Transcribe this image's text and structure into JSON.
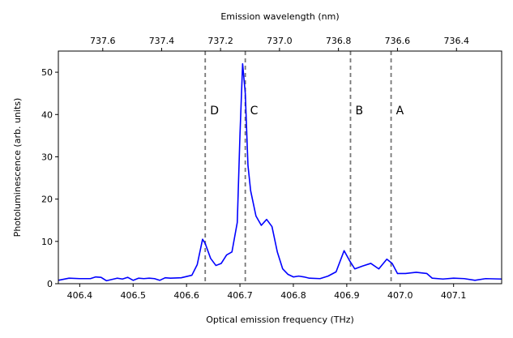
{
  "chart_data": {
    "type": "line",
    "xlabel": "Optical emission frequency (THz)",
    "ylabel": "Photoluminescence (arb. units)",
    "top_xlabel": "Emission wavelength (nm)",
    "xlim": [
      406.36,
      407.19
    ],
    "ylim": [
      0,
      55
    ],
    "x_ticks": [
      406.4,
      406.5,
      406.6,
      406.7,
      406.8,
      406.9,
      407.0,
      407.1
    ],
    "x_tick_labels": [
      "406.4",
      "406.5",
      "406.6",
      "406.7",
      "406.8",
      "406.9",
      "407.0",
      "407.1"
    ],
    "y_ticks": [
      0,
      10,
      20,
      30,
      40,
      50
    ],
    "y_tick_labels": [
      "0",
      "10",
      "20",
      "30",
      "40",
      "50"
    ],
    "top_ticks": [
      737.6,
      737.4,
      737.2,
      737.0,
      736.8,
      736.6,
      736.4
    ],
    "top_tick_labels": [
      "737.6",
      "737.4",
      "737.2",
      "737.0",
      "736.8",
      "736.6",
      "736.4"
    ],
    "series": [
      {
        "name": "Photoluminescence",
        "color": "#0000ff",
        "x": [
          406.36,
          406.38,
          406.4,
          406.42,
          406.43,
          406.44,
          406.45,
          406.47,
          406.48,
          406.49,
          406.5,
          406.51,
          406.52,
          406.53,
          406.54,
          406.55,
          406.56,
          406.57,
          406.59,
          406.61,
          406.62,
          406.63,
          406.635,
          406.645,
          406.655,
          406.665,
          406.675,
          406.685,
          406.695,
          406.7,
          406.705,
          406.71,
          406.715,
          406.72,
          406.73,
          406.74,
          406.75,
          406.76,
          406.77,
          406.78,
          406.79,
          406.8,
          406.81,
          406.82,
          406.83,
          406.85,
          406.865,
          406.88,
          406.895,
          406.905,
          406.915,
          406.93,
          406.945,
          406.96,
          406.975,
          406.985,
          406.995,
          407.01,
          407.03,
          407.05,
          407.06,
          407.08,
          407.1,
          407.12,
          407.14,
          407.16,
          407.19
        ],
        "values": [
          0.8,
          1.3,
          1.2,
          1.2,
          1.6,
          1.5,
          0.7,
          1.3,
          1.1,
          1.5,
          0.8,
          1.3,
          1.2,
          1.3,
          1.2,
          0.8,
          1.4,
          1.3,
          1.4,
          2.0,
          4.5,
          10.5,
          9.5,
          6.0,
          4.3,
          4.8,
          6.8,
          7.5,
          14.5,
          35.0,
          52.0,
          45.0,
          28.0,
          22.0,
          16.0,
          13.8,
          15.2,
          13.5,
          7.5,
          3.5,
          2.2,
          1.6,
          1.8,
          1.6,
          1.3,
          1.2,
          1.8,
          2.8,
          7.8,
          5.5,
          3.5,
          4.2,
          4.8,
          3.5,
          5.8,
          4.8,
          2.4,
          2.4,
          2.7,
          2.4,
          1.3,
          1.1,
          1.3,
          1.2,
          0.8,
          1.2,
          1.1
        ]
      }
    ],
    "markers": [
      {
        "label": "D",
        "x": 406.635
      },
      {
        "label": "C",
        "x": 406.71
      },
      {
        "label": "B",
        "x": 406.907
      },
      {
        "label": "A",
        "x": 406.983
      }
    ],
    "marker_color": "#777777",
    "marker_label_y": 41
  }
}
